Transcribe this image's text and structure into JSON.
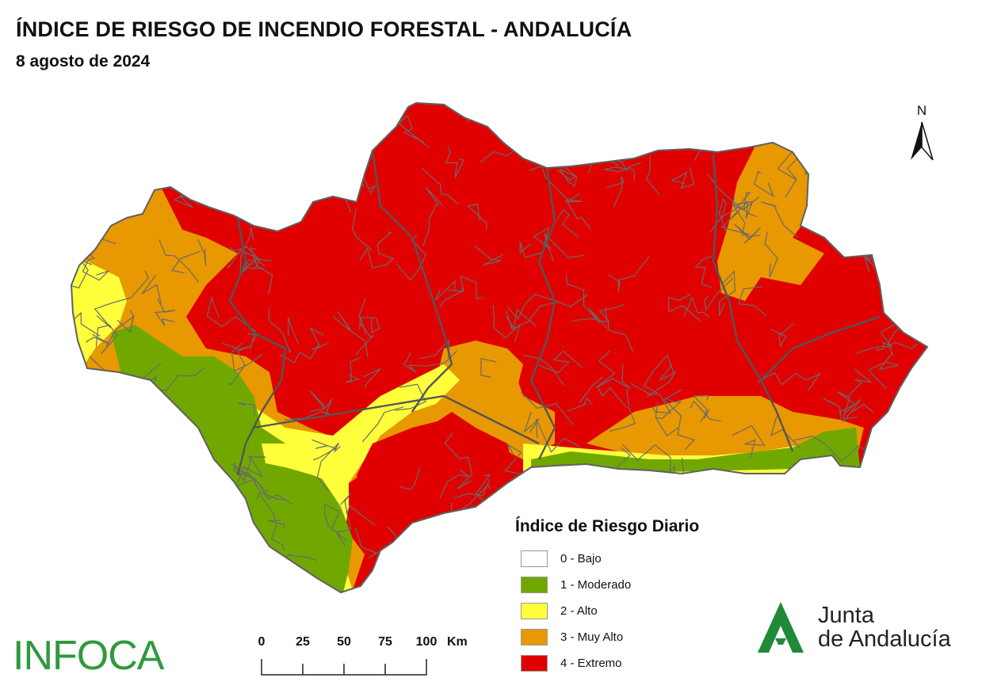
{
  "header": {
    "title": "ÍNDICE DE RIESGO DE INCENDIO FORESTAL - ANDALUCÍA",
    "date": "8 agosto de 2024"
  },
  "north_arrow": {
    "label": "N",
    "icon": "north-arrow-icon"
  },
  "legend": {
    "title": "Índice de Riesgo Diario",
    "items": [
      {
        "label": "0 - Bajo",
        "color": "#ffffff"
      },
      {
        "label": "1 - Moderado",
        "color": "#70a800"
      },
      {
        "label": "2 - Alto",
        "color": "#ffff3c"
      },
      {
        "label": "3 - Muy Alto",
        "color": "#e89800"
      },
      {
        "label": "4 - Extremo",
        "color": "#e00000"
      }
    ]
  },
  "scale_bar": {
    "ticks": [
      "0",
      "25",
      "50",
      "75",
      "100"
    ],
    "unit": "Km"
  },
  "logos": {
    "infoca": "INFOCA",
    "junta_line1": "Junta",
    "junta_line2": "de Andalucía"
  },
  "colors": {
    "border": "#606060",
    "brand_green": "#2e9a3e"
  }
}
